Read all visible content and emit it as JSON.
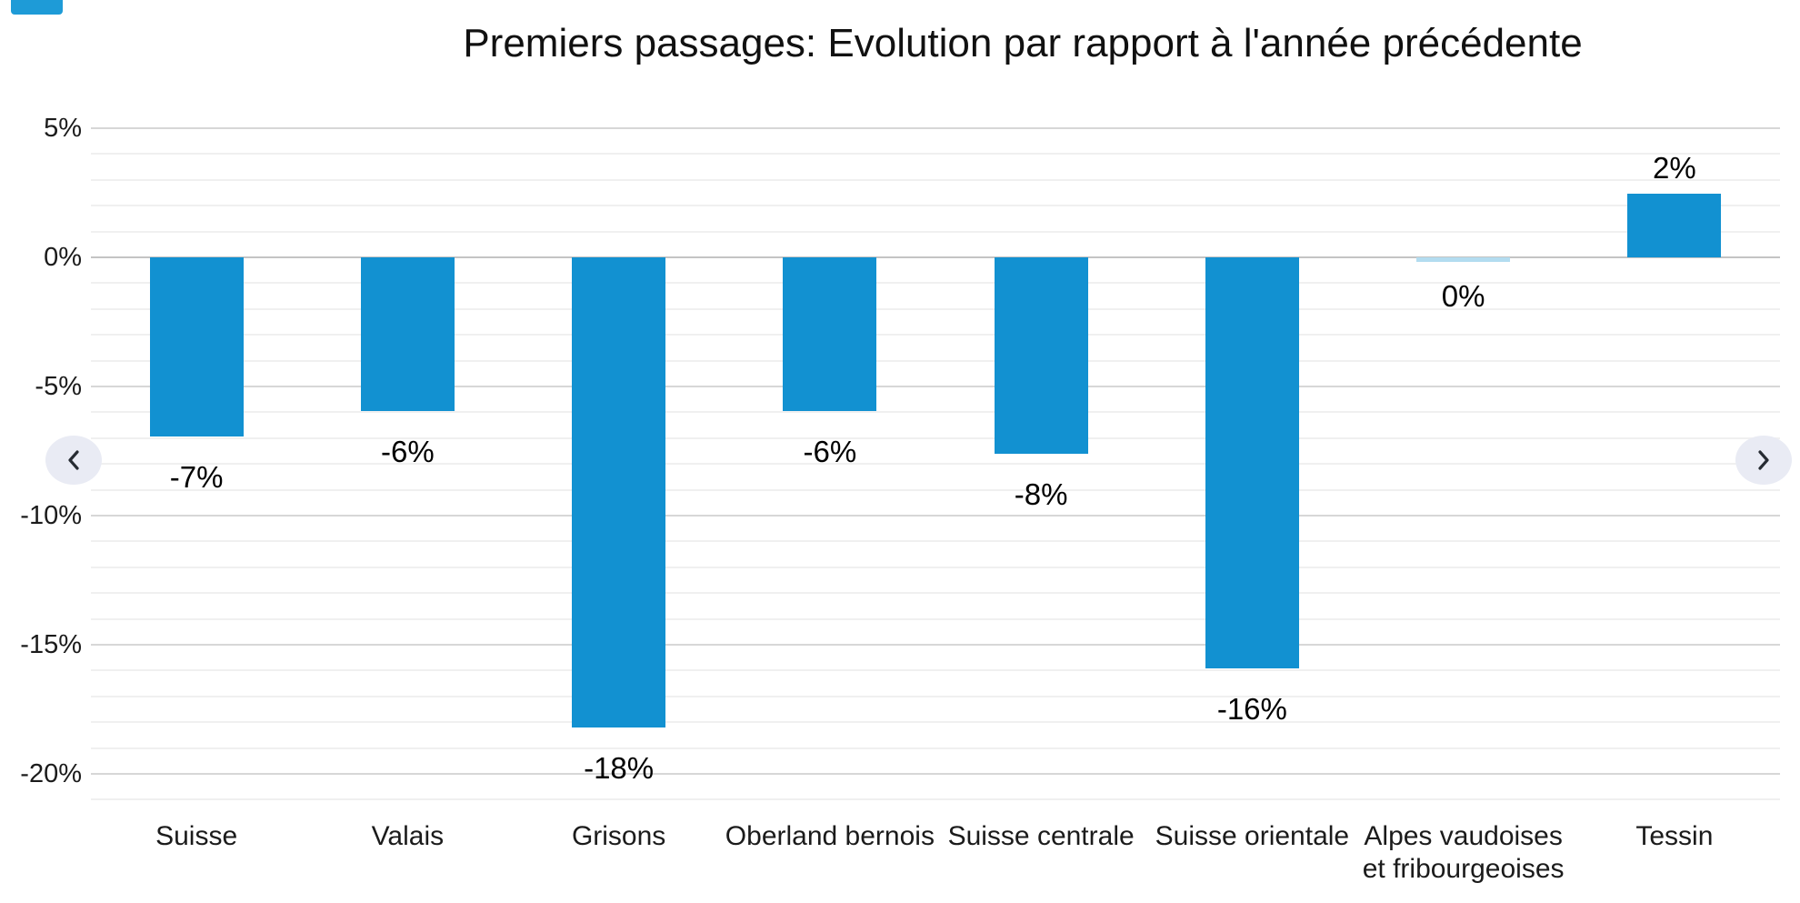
{
  "corner_badge": {
    "color": "#1e9bd7"
  },
  "nav": {
    "prev_label": "previous",
    "next_label": "next",
    "circle_color": "#e9ebf4",
    "chevron_color": "#272c33"
  },
  "chart_data": {
    "type": "bar",
    "title": "Premiers passages: Evolution par rapport à l'année précédente",
    "categories": [
      "Suisse",
      "Valais",
      "Grisons",
      "Oberland bernois",
      "Suisse centrale",
      "Suisse orientale",
      "Alpes vaudoises et fribourgeoises",
      "Tessin"
    ],
    "values": [
      -7,
      -6,
      -18,
      -6,
      -8,
      -16,
      0,
      2
    ],
    "data_labels": [
      "-7%",
      "-6%",
      "-18%",
      "-6%",
      "-8%",
      "-16%",
      "0%",
      "2%"
    ],
    "plot_values": [
      -6.95,
      -5.95,
      -18.2,
      -5.95,
      -7.6,
      -15.9,
      -0.18,
      2.45
    ],
    "bar_color": "#1291d1",
    "zero_bar_color": "#b3dcf0",
    "xlabel": "",
    "ylabel": "",
    "y_ticks": [
      "5%",
      "0%",
      "-5%",
      "-10%",
      "-15%",
      "-20%"
    ],
    "y_tick_values": [
      5,
      0,
      -5,
      -10,
      -15,
      -20
    ],
    "ylim": [
      5,
      -21
    ],
    "minor_step": 1,
    "grid": true,
    "legend": "none"
  }
}
